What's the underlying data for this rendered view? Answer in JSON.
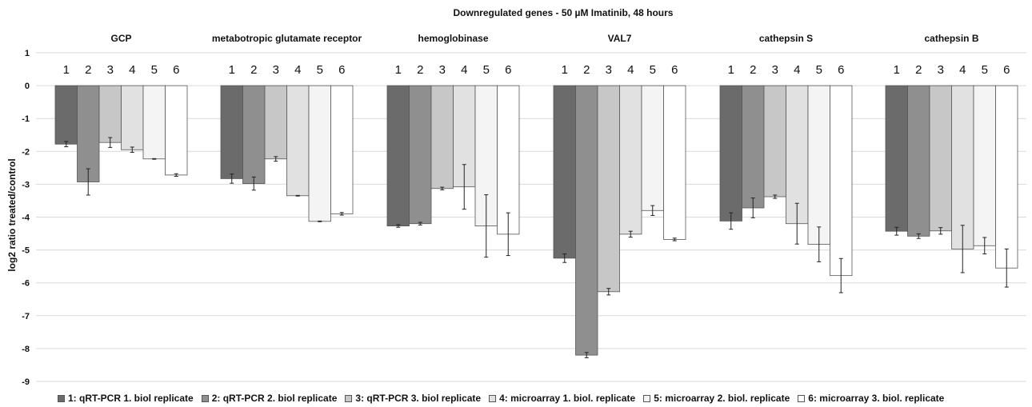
{
  "chart_data": {
    "type": "bar",
    "title": "Downregulated genes - 50 µM Imatinib, 48 hours",
    "ylabel": "log2 ratio treated/control",
    "ylim": [
      -9,
      1
    ],
    "yticks": [
      1,
      0,
      -1,
      -2,
      -3,
      -4,
      -5,
      -6,
      -7,
      -8,
      -9
    ],
    "grid": true,
    "legend_position": "bottom",
    "categories": [
      "GCP",
      "metabotropic glutamate receptor",
      "hemoglobinase",
      "VAL7",
      "cathepsin S",
      "cathepsin B"
    ],
    "replicate_labels": [
      "1",
      "2",
      "3",
      "4",
      "5",
      "6"
    ],
    "series": [
      {
        "name": "1: qRT-PCR 1. biol replicate",
        "color": "#6b6b6b",
        "values": [
          -1.78,
          -2.83,
          -4.27,
          -5.25,
          -4.12,
          -4.43
        ],
        "errors": [
          0.08,
          0.14,
          0.04,
          0.13,
          0.25,
          0.12
        ]
      },
      {
        "name": "2: qRT-PCR 2. biol replicate",
        "color": "#8f8f8f",
        "values": [
          -2.93,
          -2.98,
          -4.2,
          -8.2,
          -3.72,
          -4.58
        ],
        "errors": [
          0.4,
          0.2,
          0.04,
          0.08,
          0.3,
          0.07
        ]
      },
      {
        "name": "3: qRT-PCR 3. biol replicate",
        "color": "#c7c7c7",
        "values": [
          -1.73,
          -2.23,
          -3.13,
          -6.27,
          -3.38,
          -4.42
        ],
        "errors": [
          0.15,
          0.07,
          0.04,
          0.1,
          0.05,
          0.1
        ]
      },
      {
        "name": "4: microarray 1. biol. replicate",
        "color": "#e1e1e1",
        "values": [
          -1.95,
          -3.35,
          -3.08,
          -4.52,
          -4.2,
          -4.97
        ],
        "errors": [
          0.08,
          0.01,
          0.68,
          0.09,
          0.62,
          0.72
        ]
      },
      {
        "name": "5: microarray 2. biol. replicate",
        "color": "#f4f4f4",
        "values": [
          -2.23,
          -4.13,
          -4.27,
          -3.8,
          -4.83,
          -4.87
        ],
        "errors": [
          0.01,
          0.01,
          0.95,
          0.15,
          0.53,
          0.25
        ]
      },
      {
        "name": "6: microarray 3. biol. replicate",
        "color": "#ffffff",
        "values": [
          -2.72,
          -3.9,
          -4.52,
          -4.68,
          -5.78,
          -5.55
        ],
        "errors": [
          0.04,
          0.04,
          0.65,
          0.04,
          0.52,
          0.58
        ]
      }
    ]
  }
}
